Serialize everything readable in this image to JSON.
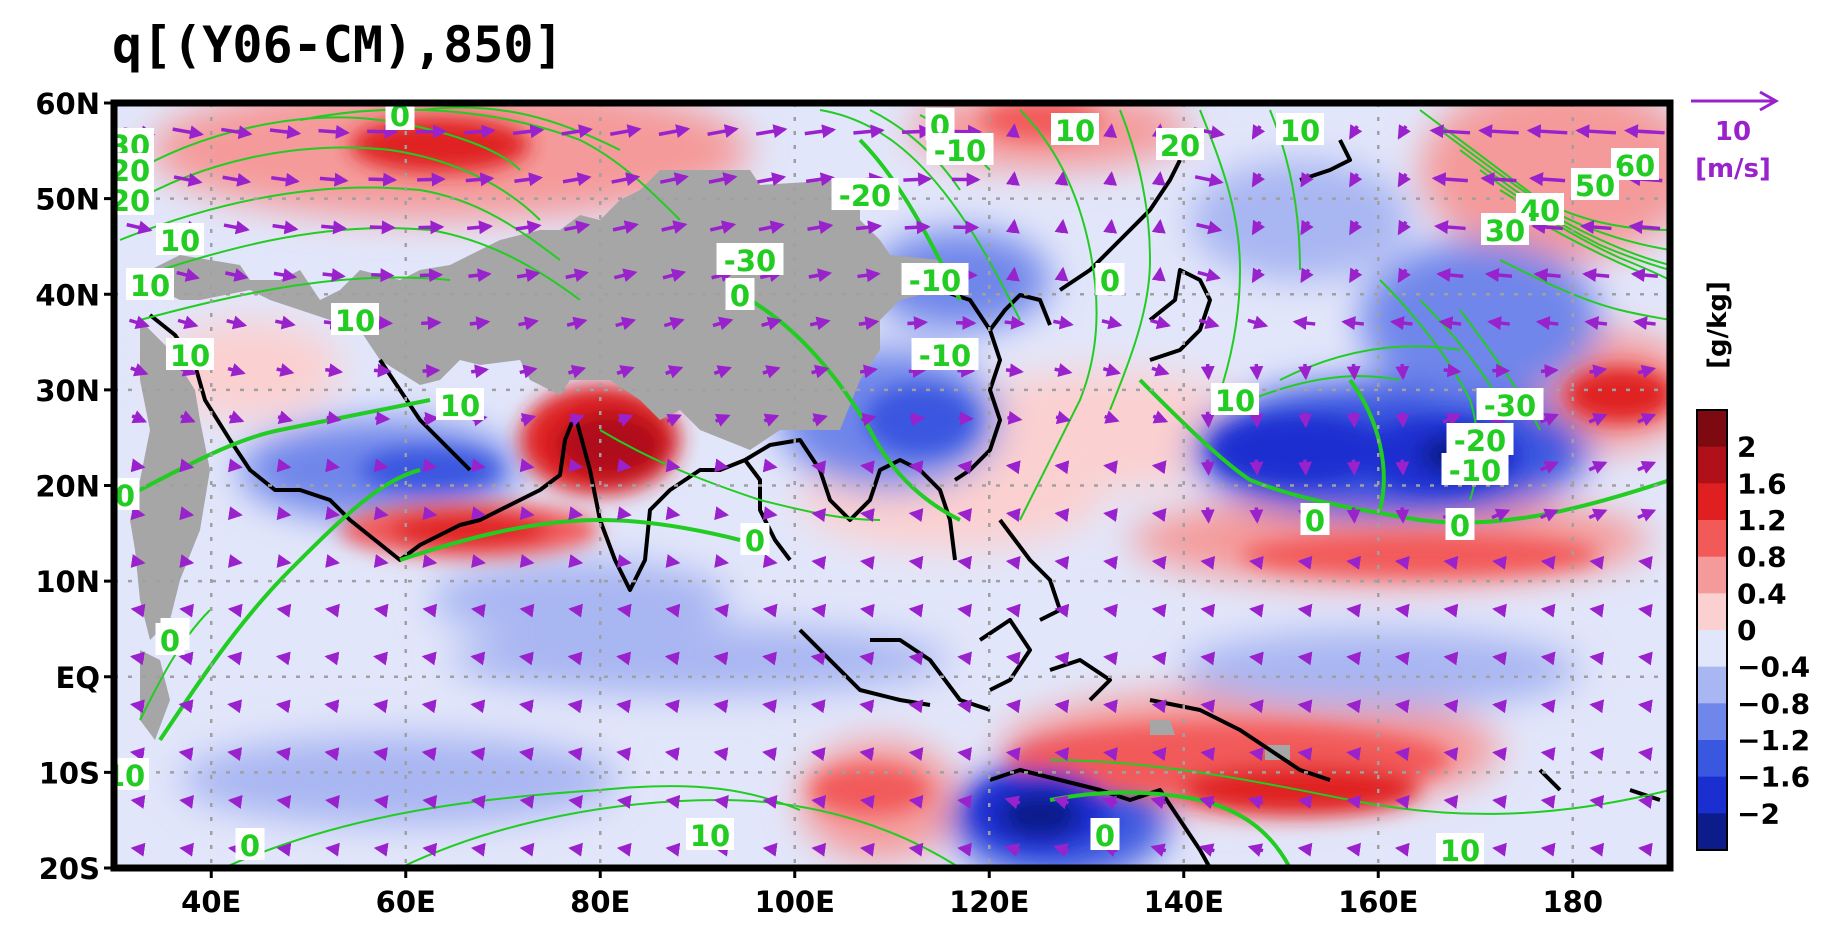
{
  "title": "q[(Y06-CM),850]",
  "lat_labels": [
    "60N",
    "50N",
    "40N",
    "30N",
    "20N",
    "10N",
    "EQ",
    "10S",
    "20S"
  ],
  "lon_labels": [
    "40E",
    "60E",
    "80E",
    "100E",
    "120E",
    "140E",
    "160E",
    "180"
  ],
  "map_extent": {
    "lon": [
      30,
      190
    ],
    "lat": [
      -20,
      60
    ]
  },
  "colorbar": {
    "unit": "[g/kg]",
    "tick_labels": [
      "2",
      "1.6",
      "1.2",
      "0.8",
      "0.4",
      "0",
      "−0.4",
      "−0.8",
      "−1.2",
      "−1.6",
      "−2"
    ],
    "colors": [
      "#7d0a10",
      "#b0101a",
      "#e02020",
      "#f25a5a",
      "#f59a9a",
      "#fbd0d0",
      "#e2e6fa",
      "#a8b6f2",
      "#6f86ea",
      "#3a57e0",
      "#1b2ed0",
      "#0c1c8a"
    ]
  },
  "vector_reference": {
    "value": "10",
    "unit": "[m/s]",
    "color": "#9a22cc"
  },
  "contour_color": "#22cc22",
  "land_mask_color": "#a6a6a6",
  "contour_labels": [
    "0",
    "30",
    "20",
    "20",
    "10",
    "10",
    "10",
    "10",
    "10",
    "0",
    "0",
    "10",
    "0",
    "0",
    "-10",
    "-20",
    "-30",
    "-10",
    "-10",
    "0",
    "20",
    "10",
    "0",
    "10",
    "60",
    "50",
    "40",
    "30",
    "-30",
    "-20",
    "-10",
    "0",
    "0",
    "0",
    "10",
    "10",
    "0",
    "0",
    "10"
  ]
}
